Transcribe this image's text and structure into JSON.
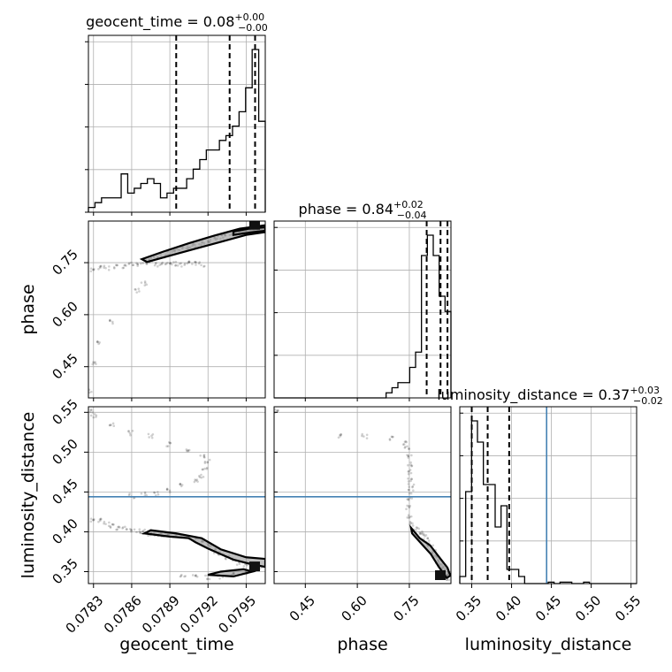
{
  "chart_data": {
    "type": "corner",
    "parameters": [
      "geocent_time",
      "phase",
      "luminosity_distance"
    ],
    "titles": [
      {
        "param": "geocent_time",
        "main": "geocent_time = 0.08",
        "plus": "+0.00",
        "minus": "−0.00"
      },
      {
        "param": "phase",
        "main": "phase = 0.84",
        "plus": "+0.02",
        "minus": "−0.04"
      },
      {
        "param": "luminosity_distance",
        "main": "luminosity_distance = 0.37",
        "plus": "+0.03",
        "minus": "−0.02"
      }
    ],
    "axis_labels": {
      "x": [
        "geocent_time",
        "phase",
        "luminosity_distance"
      ],
      "y": [
        "phase",
        "luminosity_distance"
      ]
    },
    "ticks": {
      "geocent_time": {
        "values": [
          0.0783,
          0.0786,
          0.0789,
          0.0792,
          0.0795
        ],
        "labels": [
          "0.0783",
          "0.0786",
          "0.0789",
          "0.0792",
          "0.0795"
        ]
      },
      "phase": {
        "values": [
          0.45,
          0.6,
          0.75
        ],
        "labels": [
          "0.45",
          "0.60",
          "0.75"
        ]
      },
      "luminosity_distance": {
        "values": [
          0.35,
          0.4,
          0.45,
          0.5,
          0.55
        ],
        "labels": [
          "0.35",
          "0.40",
          "0.45",
          "0.50",
          "0.55"
        ]
      }
    },
    "ranges": {
      "geocent_time": [
        0.07826,
        0.07965
      ],
      "phase": [
        0.36,
        0.87
      ],
      "luminosity_distance": [
        0.335,
        0.557
      ]
    },
    "truth": {
      "luminosity_distance": 0.444
    },
    "quantiles": {
      "geocent_time": [
        0.07895,
        0.07937,
        0.07957
      ],
      "phase": [
        0.8,
        0.84,
        0.86
      ],
      "luminosity_distance": [
        0.35,
        0.37,
        0.397
      ]
    },
    "histograms": {
      "geocent_time": {
        "edges": [
          0.07826,
          0.07965
        ],
        "counts": [
          1,
          2,
          3,
          3,
          3,
          8,
          4,
          5,
          6,
          7,
          6,
          3,
          4,
          5,
          5,
          7,
          9,
          11,
          13,
          13,
          15,
          16,
          18,
          21,
          26,
          34,
          19
        ]
      },
      "phase": {
        "edges": [
          0.36,
          0.87
        ],
        "counts": [
          0,
          0,
          0,
          0,
          0,
          0,
          0,
          0,
          0,
          0,
          0,
          0,
          0,
          0,
          0,
          0,
          0,
          0,
          0,
          1,
          2,
          3,
          3,
          6,
          9,
          28,
          32,
          28,
          20,
          17
        ]
      },
      "luminosity_distance": {
        "edges": [
          0.335,
          0.557
        ],
        "counts": [
          1,
          13,
          23,
          20,
          14,
          14,
          8,
          11,
          2,
          2,
          1,
          0,
          0,
          0,
          0,
          0.2,
          0,
          0.2,
          0.2,
          0,
          0,
          0.2,
          0,
          0,
          0,
          0,
          0,
          0,
          0,
          0
        ]
      }
    },
    "samples": {
      "time_phase": [
        [
          0.0783,
          0.73
        ],
        [
          0.07835,
          0.735
        ],
        [
          0.0784,
          0.735
        ],
        [
          0.07848,
          0.74
        ],
        [
          0.07855,
          0.74
        ],
        [
          0.0786,
          0.745
        ],
        [
          0.07865,
          0.745
        ],
        [
          0.0787,
          0.752
        ],
        [
          0.07875,
          0.757
        ],
        [
          0.0788,
          0.764
        ],
        [
          0.07885,
          0.77
        ],
        [
          0.0789,
          0.777
        ],
        [
          0.07895,
          0.783
        ],
        [
          0.079,
          0.79
        ],
        [
          0.07905,
          0.796
        ],
        [
          0.0791,
          0.8
        ],
        [
          0.07915,
          0.808
        ],
        [
          0.0792,
          0.815
        ],
        [
          0.07925,
          0.82
        ],
        [
          0.0793,
          0.825
        ],
        [
          0.07935,
          0.83
        ],
        [
          0.0794,
          0.835
        ],
        [
          0.07945,
          0.838
        ],
        [
          0.0795,
          0.842
        ],
        [
          0.07955,
          0.845
        ],
        [
          0.0796,
          0.846
        ],
        [
          0.0788,
          0.745
        ],
        [
          0.07885,
          0.748
        ],
        [
          0.0789,
          0.748
        ],
        [
          0.07895,
          0.747
        ],
        [
          0.079,
          0.745
        ],
        [
          0.07905,
          0.748
        ],
        [
          0.0791,
          0.746
        ],
        [
          0.07915,
          0.745
        ],
        [
          0.0787,
          0.69
        ],
        [
          0.07865,
          0.67
        ],
        [
          0.07845,
          0.58
        ],
        [
          0.07835,
          0.52
        ],
        [
          0.0783,
          0.46
        ],
        [
          0.07827,
          0.38
        ]
      ],
      "time_dist": [
        [
          0.0783,
          0.415
        ],
        [
          0.07835,
          0.414
        ],
        [
          0.0784,
          0.41
        ],
        [
          0.07845,
          0.408
        ],
        [
          0.0785,
          0.405
        ],
        [
          0.07855,
          0.404
        ],
        [
          0.0786,
          0.402
        ],
        [
          0.07865,
          0.401
        ],
        [
          0.0787,
          0.4
        ],
        [
          0.07875,
          0.398
        ],
        [
          0.0788,
          0.397
        ],
        [
          0.07885,
          0.396
        ],
        [
          0.0789,
          0.396
        ],
        [
          0.07895,
          0.395
        ],
        [
          0.079,
          0.395
        ],
        [
          0.07905,
          0.393
        ],
        [
          0.0791,
          0.392
        ],
        [
          0.07915,
          0.39
        ],
        [
          0.0792,
          0.383
        ],
        [
          0.07925,
          0.376
        ],
        [
          0.0793,
          0.372
        ],
        [
          0.07935,
          0.368
        ],
        [
          0.0794,
          0.364
        ],
        [
          0.07945,
          0.36
        ],
        [
          0.0795,
          0.358
        ],
        [
          0.07955,
          0.358
        ],
        [
          0.0796,
          0.356
        ],
        [
          0.079,
          0.345
        ],
        [
          0.0791,
          0.345
        ],
        [
          0.0792,
          0.343
        ],
        [
          0.0793,
          0.344
        ],
        [
          0.0794,
          0.346
        ],
        [
          0.0795,
          0.348
        ],
        [
          0.0786,
          0.445
        ],
        [
          0.0787,
          0.447
        ],
        [
          0.0788,
          0.448
        ],
        [
          0.0789,
          0.452
        ],
        [
          0.079,
          0.459
        ],
        [
          0.0791,
          0.464
        ],
        [
          0.07915,
          0.47
        ],
        [
          0.07918,
          0.478
        ],
        [
          0.0792,
          0.488
        ],
        [
          0.07915,
          0.495
        ],
        [
          0.07905,
          0.503
        ],
        [
          0.0789,
          0.51
        ],
        [
          0.07875,
          0.52
        ],
        [
          0.0786,
          0.524
        ],
        [
          0.07845,
          0.534
        ],
        [
          0.0783,
          0.545
        ],
        [
          0.07827,
          0.552
        ]
      ],
      "phase_dist": [
        [
          0.37,
          0.552
        ],
        [
          0.55,
          0.52
        ],
        [
          0.62,
          0.52
        ],
        [
          0.7,
          0.518
        ],
        [
          0.74,
          0.512
        ],
        [
          0.745,
          0.505
        ],
        [
          0.748,
          0.495
        ],
        [
          0.75,
          0.485
        ],
        [
          0.752,
          0.475
        ],
        [
          0.755,
          0.466
        ],
        [
          0.756,
          0.458
        ],
        [
          0.755,
          0.45
        ],
        [
          0.752,
          0.44
        ],
        [
          0.75,
          0.43
        ],
        [
          0.752,
          0.42
        ],
        [
          0.76,
          0.41
        ],
        [
          0.77,
          0.405
        ],
        [
          0.78,
          0.4
        ],
        [
          0.79,
          0.396
        ],
        [
          0.8,
          0.39
        ],
        [
          0.81,
          0.383
        ],
        [
          0.82,
          0.375
        ],
        [
          0.83,
          0.368
        ],
        [
          0.835,
          0.362
        ],
        [
          0.84,
          0.358
        ],
        [
          0.845,
          0.356
        ],
        [
          0.85,
          0.354
        ],
        [
          0.855,
          0.35
        ],
        [
          0.858,
          0.346
        ],
        [
          0.86,
          0.342
        ]
      ]
    },
    "contours": {
      "time_phase": [
        [
          [
            0.07872,
            0.752
          ],
          [
            0.0789,
            0.77
          ],
          [
            0.0791,
            0.79
          ],
          [
            0.0793,
            0.81
          ],
          [
            0.0795,
            0.83
          ],
          [
            0.07965,
            0.838
          ],
          [
            0.07965,
            0.858
          ],
          [
            0.07945,
            0.848
          ],
          [
            0.07925,
            0.828
          ],
          [
            0.07905,
            0.806
          ],
          [
            0.07885,
            0.782
          ],
          [
            0.07868,
            0.76
          ]
        ],
        [
          [
            0.0794,
            0.83
          ],
          [
            0.07955,
            0.838
          ],
          [
            0.07965,
            0.842
          ],
          [
            0.07965,
            0.852
          ],
          [
            0.07952,
            0.848
          ],
          [
            0.0794,
            0.84
          ]
        ]
      ],
      "time_dist": [
        [
          [
            0.0787,
            0.398
          ],
          [
            0.0789,
            0.394
          ],
          [
            0.07905,
            0.392
          ],
          [
            0.0791,
            0.387
          ],
          [
            0.0792,
            0.379
          ],
          [
            0.0794,
            0.365
          ],
          [
            0.07955,
            0.359
          ],
          [
            0.07965,
            0.356
          ],
          [
            0.07965,
            0.366
          ],
          [
            0.0795,
            0.368
          ],
          [
            0.0793,
            0.378
          ],
          [
            0.07915,
            0.392
          ],
          [
            0.07895,
            0.398
          ],
          [
            0.07875,
            0.402
          ]
        ],
        [
          [
            0.0792,
            0.346
          ],
          [
            0.0794,
            0.344
          ],
          [
            0.07955,
            0.35
          ],
          [
            0.07948,
            0.353
          ],
          [
            0.0793,
            0.35
          ]
        ]
      ],
      "phase_dist": [
        [
          [
            0.755,
            0.405
          ],
          [
            0.78,
            0.392
          ],
          [
            0.81,
            0.383
          ],
          [
            0.84,
            0.366
          ],
          [
            0.86,
            0.355
          ],
          [
            0.868,
            0.345
          ],
          [
            0.858,
            0.342
          ],
          [
            0.835,
            0.356
          ],
          [
            0.812,
            0.372
          ],
          [
            0.785,
            0.385
          ],
          [
            0.758,
            0.398
          ]
        ]
      ]
    },
    "grid": true,
    "truth_color": "#4682b4",
    "line_color": "#000000"
  }
}
